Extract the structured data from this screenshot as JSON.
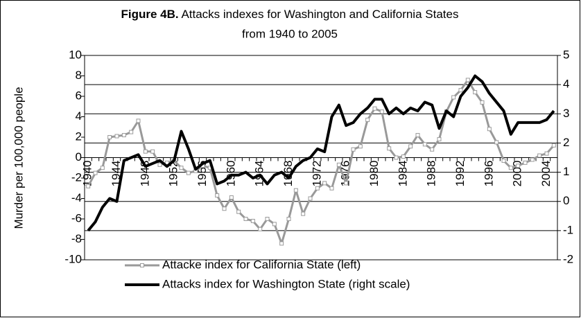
{
  "chart_data": {
    "type": "line",
    "figure_label": "Figure 4B.",
    "title": [
      "Attacks indexes for Washington and California States",
      "from 1940 to 2005"
    ],
    "ylabel": "Murder per 100,000 people",
    "categories": [
      "1940",
      null,
      null,
      null,
      "1944",
      null,
      null,
      null,
      "1948",
      null,
      null,
      null,
      "1952",
      null,
      null,
      null,
      "1956",
      null,
      null,
      null,
      "1960",
      null,
      null,
      null,
      "1964",
      null,
      null,
      null,
      "1968",
      null,
      null,
      null,
      "1972",
      null,
      null,
      null,
      "1976",
      null,
      null,
      null,
      "1980",
      null,
      null,
      null,
      "1984",
      null,
      null,
      null,
      "1988",
      null,
      null,
      null,
      "1992",
      null,
      null,
      null,
      "1996",
      null,
      null,
      null,
      "2000",
      null,
      null,
      null,
      "2004",
      null
    ],
    "series": [
      {
        "name": "Attacke index for California State (left)",
        "color": "#999999",
        "marker": "square",
        "values": [
          -2.8,
          -1.5,
          -1.0,
          2.0,
          2.1,
          2.2,
          2.5,
          3.6,
          0.6,
          0.6,
          -0.7,
          -0.5,
          -0.3,
          -1.0,
          -1.5,
          -1.3,
          -0.8,
          -1.0,
          -3.7,
          -5.0,
          -3.9,
          -5.3,
          -6.0,
          -6.2,
          -7.0,
          -6.0,
          -6.5,
          -8.4,
          -6.0,
          -3.2,
          -5.5,
          -4.0,
          -3.0,
          -2.5,
          -3.0,
          -0.7,
          -2.5,
          0.8,
          1.1,
          3.7,
          4.8,
          4.5,
          0.9,
          0.0,
          0.1,
          1.1,
          2.2,
          1.3,
          0.8,
          1.8,
          4.5,
          5.9,
          6.6,
          7.6,
          6.4,
          5.4,
          2.8,
          1.5,
          -0.3,
          -1.0,
          -0.8,
          -0.5,
          -0.2,
          0.2,
          0.4,
          1.2
        ]
      },
      {
        "name": "Attacks index for Washington State (right scale)",
        "color": "#000000",
        "axis": "y2",
        "values": [
          -1.0,
          -0.7,
          -0.2,
          0.1,
          0.0,
          1.4,
          1.5,
          1.6,
          1.2,
          1.3,
          1.4,
          1.2,
          1.4,
          2.4,
          1.8,
          1.1,
          1.3,
          1.4,
          0.6,
          0.7,
          0.9,
          0.9,
          1.0,
          0.8,
          0.9,
          0.6,
          0.9,
          1.0,
          0.8,
          1.2,
          1.4,
          1.5,
          1.8,
          1.7,
          2.9,
          3.3,
          2.6,
          2.7,
          3.0,
          3.2,
          3.5,
          3.5,
          3.0,
          3.2,
          3.0,
          3.2,
          3.1,
          3.4,
          3.3,
          2.5,
          3.1,
          2.9,
          3.6,
          3.9,
          4.3,
          4.1,
          3.7,
          3.4,
          3.1,
          2.3,
          2.7,
          2.7,
          2.7,
          2.7,
          2.8,
          3.1
        ]
      }
    ],
    "ylim": [
      -10,
      10
    ],
    "yticks": [
      10,
      8,
      6,
      4,
      2,
      0,
      -2,
      -4,
      -6,
      -8,
      -10
    ],
    "y2lim": [
      -2,
      5
    ],
    "y2ticks": [
      5,
      4,
      3,
      2,
      1,
      0,
      -1,
      -2
    ],
    "grid": true,
    "legend": "bottom"
  }
}
